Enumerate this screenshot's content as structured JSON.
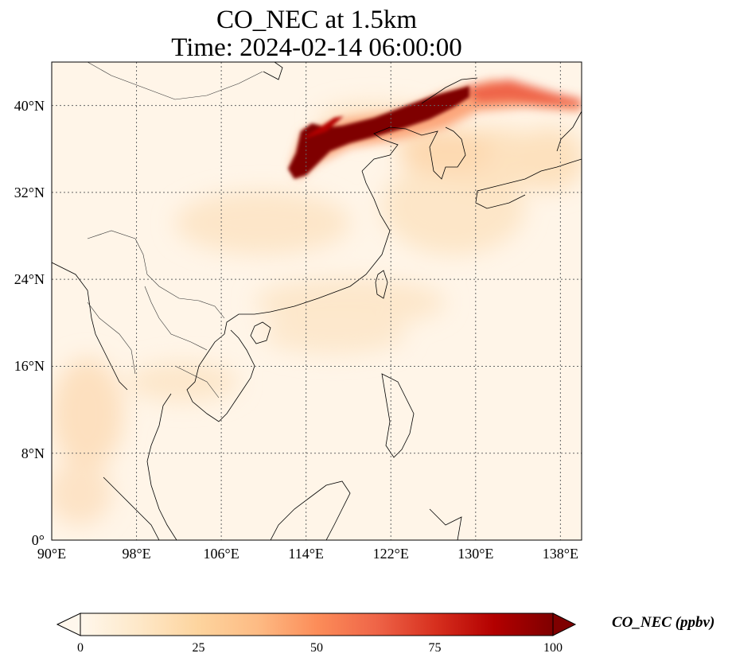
{
  "title": {
    "line1": "CO_NEC at 1.5km",
    "line2": "Time: 2024-02-14 06:00:00"
  },
  "map": {
    "projection": "PlateCarree",
    "lon_range": [
      90,
      140
    ],
    "lat_range": [
      0,
      44
    ],
    "gridlines": "dotted",
    "xticks": [
      {
        "value": 90,
        "label": "90°E"
      },
      {
        "value": 98,
        "label": "98°E"
      },
      {
        "value": 106,
        "label": "106°E"
      },
      {
        "value": 114,
        "label": "114°E"
      },
      {
        "value": 122,
        "label": "122°E"
      },
      {
        "value": 130,
        "label": "130°E"
      },
      {
        "value": 138,
        "label": "138°E"
      }
    ],
    "yticks": [
      {
        "value": 0,
        "label": "0°"
      },
      {
        "value": 8,
        "label": "8°N"
      },
      {
        "value": 16,
        "label": "16°N"
      },
      {
        "value": 24,
        "label": "24°N"
      },
      {
        "value": 32,
        "label": "32°N"
      },
      {
        "value": 40,
        "label": "40°N"
      }
    ],
    "field_max_region": "plume over northern China, Korea and Sea of Japan (≥100 ppbv)",
    "background_level_ppbv": 15
  },
  "colorbar": {
    "label": "CO_NEC (ppbv)",
    "colormap": "OrRd",
    "colors": [
      "#fff7ec",
      "#fee8c8",
      "#fdd49e",
      "#fdbb84",
      "#fc8d59",
      "#ef6548",
      "#d7301f",
      "#b30000",
      "#7f0000"
    ],
    "min": 0,
    "max": 100,
    "extend": "both",
    "ticks": [
      {
        "value": 0,
        "label": "0"
      },
      {
        "value": 25,
        "label": "25"
      },
      {
        "value": 50,
        "label": "50"
      },
      {
        "value": 75,
        "label": "75"
      },
      {
        "value": 100,
        "label": "100"
      }
    ]
  }
}
